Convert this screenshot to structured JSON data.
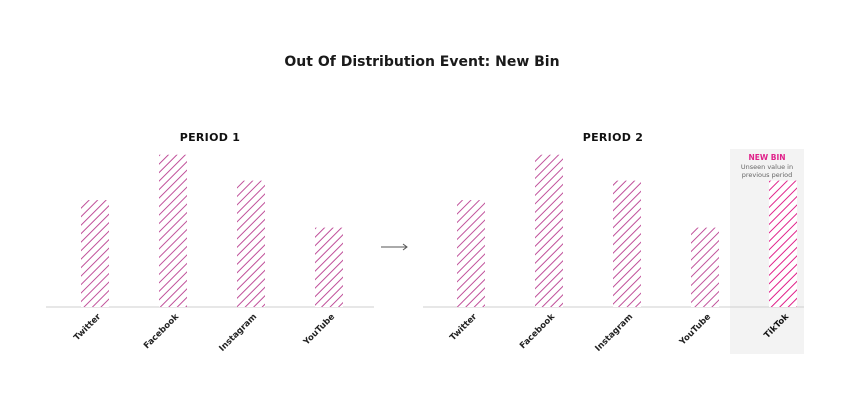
{
  "title": "Out Of Distribution Event: New Bin",
  "colors": {
    "bar_stripe": "#c0509a",
    "highlight_stripe": "#e0218a",
    "highlight_bg": "#f3f3f3",
    "baseline": "#cfcfcf",
    "arrow": "#555555"
  },
  "chart_data": [
    {
      "type": "bar",
      "title": "PERIOD 1",
      "categories": [
        "Twitter",
        "Facebook",
        "Instagram",
        "YouTube"
      ],
      "values": [
        66,
        94,
        78,
        49
      ],
      "ylim": [
        0,
        100
      ]
    },
    {
      "type": "bar",
      "title": "PERIOD 2",
      "categories": [
        "Twitter",
        "Facebook",
        "Instagram",
        "YouTube",
        "TikTok"
      ],
      "values": [
        66,
        94,
        78,
        49,
        78
      ],
      "ylim": [
        0,
        100
      ],
      "highlight": {
        "category": "TikTok",
        "label": "NEW BIN",
        "note_lines": [
          "Unseen value in",
          "previous period"
        ]
      }
    }
  ]
}
